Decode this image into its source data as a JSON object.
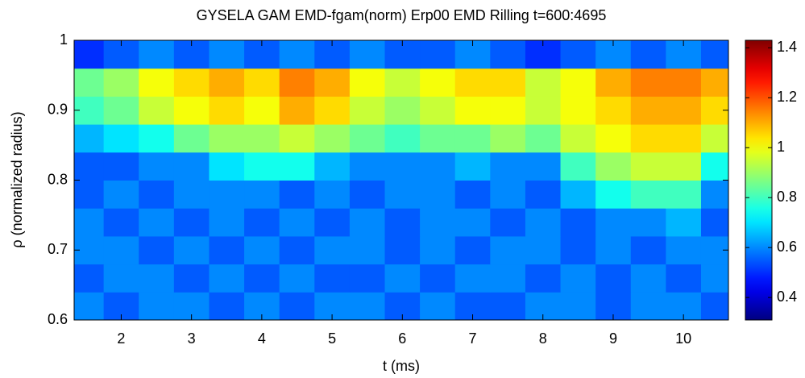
{
  "chart_data": {
    "type": "heatmap",
    "title": "GYSELA GAM EMD-fgam(norm) Erp00 EMD Rilling t=600:4695",
    "x_label": "t (ms)",
    "y_label": "ρ (normalized radius)",
    "x": [
      1.5,
      2,
      2.5,
      3,
      3.5,
      4,
      4.5,
      5,
      5.5,
      6,
      6.5,
      7,
      7.5,
      8,
      8.5,
      9,
      9.5,
      10,
      10.5
    ],
    "y": [
      0.62,
      0.66,
      0.7,
      0.74,
      0.78,
      0.82,
      0.86,
      0.9,
      0.94,
      0.98
    ],
    "z": [
      [
        0.6,
        0.55,
        0.6,
        0.6,
        0.55,
        0.6,
        0.55,
        0.6,
        0.6,
        0.55,
        0.6,
        0.55,
        0.55,
        0.6,
        0.6,
        0.55,
        0.6,
        0.6,
        0.55
      ],
      [
        0.55,
        0.6,
        0.6,
        0.55,
        0.6,
        0.55,
        0.6,
        0.55,
        0.55,
        0.6,
        0.55,
        0.6,
        0.6,
        0.55,
        0.6,
        0.55,
        0.6,
        0.55,
        0.6
      ],
      [
        0.6,
        0.6,
        0.55,
        0.6,
        0.55,
        0.6,
        0.55,
        0.6,
        0.6,
        0.55,
        0.6,
        0.55,
        0.6,
        0.6,
        0.55,
        0.6,
        0.55,
        0.6,
        0.6
      ],
      [
        0.6,
        0.55,
        0.6,
        0.55,
        0.6,
        0.55,
        0.6,
        0.55,
        0.6,
        0.55,
        0.6,
        0.6,
        0.55,
        0.6,
        0.55,
        0.6,
        0.6,
        0.65,
        0.55
      ],
      [
        0.55,
        0.6,
        0.55,
        0.6,
        0.6,
        0.6,
        0.55,
        0.6,
        0.55,
        0.6,
        0.6,
        0.55,
        0.6,
        0.55,
        0.65,
        0.75,
        0.8,
        0.8,
        0.6
      ],
      [
        0.55,
        0.55,
        0.6,
        0.6,
        0.7,
        0.75,
        0.75,
        0.65,
        0.6,
        0.6,
        0.6,
        0.65,
        0.6,
        0.6,
        0.8,
        0.9,
        0.95,
        0.95,
        0.75
      ],
      [
        0.65,
        0.7,
        0.75,
        0.85,
        0.9,
        0.9,
        0.95,
        0.9,
        0.85,
        0.8,
        0.85,
        0.85,
        0.9,
        0.85,
        0.95,
        1.0,
        1.05,
        1.05,
        0.95
      ],
      [
        0.8,
        0.85,
        0.95,
        1.0,
        1.05,
        1.0,
        1.1,
        1.05,
        0.95,
        0.9,
        0.95,
        1.0,
        1.0,
        0.95,
        1.0,
        1.05,
        1.1,
        1.1,
        1.05
      ],
      [
        0.85,
        0.9,
        1.0,
        1.05,
        1.1,
        1.05,
        1.15,
        1.1,
        1.0,
        0.95,
        1.0,
        1.05,
        1.05,
        0.95,
        1.0,
        1.1,
        1.15,
        1.15,
        1.1
      ],
      [
        0.5,
        0.55,
        0.6,
        0.55,
        0.6,
        0.55,
        0.6,
        0.55,
        0.6,
        0.55,
        0.55,
        0.6,
        0.55,
        0.5,
        0.55,
        0.6,
        0.55,
        0.6,
        0.55
      ]
    ],
    "xlim": [
      1.33,
      10.64
    ],
    "ylim": [
      0.6,
      1
    ],
    "xticks": [
      2,
      3,
      4,
      5,
      6,
      7,
      8,
      9,
      10
    ],
    "yticks": [
      0.6,
      0.7,
      0.8,
      0.9,
      1
    ],
    "colormap": "jet",
    "clim": [
      0.31,
      1.43
    ],
    "cticks": [
      0.4,
      0.6,
      0.8,
      1,
      1.2,
      1.4
    ]
  }
}
